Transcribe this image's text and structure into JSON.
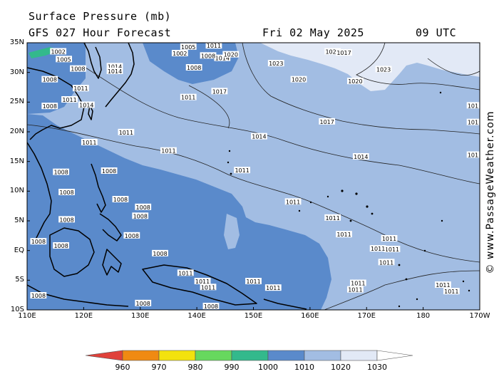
{
  "header": {
    "title": "Surface Pressure (mb)",
    "forecast": "GFS 027 Hour Forecast",
    "date": "Fri 02 May 2025",
    "time": "09 UTC"
  },
  "watermark": "© www.PassageWeather.com",
  "map": {
    "lat_labels": [
      "35N",
      "30N",
      "25N",
      "20N",
      "15N",
      "10N",
      "5N",
      "EQ",
      "5S",
      "10S"
    ],
    "lon_labels": [
      "110E",
      "120E",
      "130E",
      "140E",
      "150E",
      "160E",
      "170E",
      "180",
      "170W"
    ],
    "colors": {
      "ocean_1010": "#5a8acb",
      "ocean_1020": "#a2bde3",
      "high_1030": "#e2e9f6",
      "land_outline": "#000000"
    },
    "isobar_labels": [
      {
        "text": "1023",
        "lon": 154,
        "lat": 31.5
      },
      {
        "text": "1020",
        "lon": 158,
        "lat": 28.8
      },
      {
        "text": "1020",
        "lon": 164,
        "lat": 33.5
      },
      {
        "text": "1017",
        "lon": 166,
        "lat": 33.3
      },
      {
        "text": "1020",
        "lon": 168,
        "lat": 28.5
      },
      {
        "text": "1023",
        "lon": 173,
        "lat": 30.5
      },
      {
        "text": "1017",
        "lon": 144,
        "lat": 26.8
      },
      {
        "text": "1017",
        "lon": 163,
        "lat": 21.7
      },
      {
        "text": "1014",
        "lon": 151,
        "lat": 19.2
      },
      {
        "text": "1014",
        "lon": 169,
        "lat": 15.8
      },
      {
        "text": "1011",
        "lon": 127.5,
        "lat": 19.9
      },
      {
        "text": "1011",
        "lon": 135,
        "lat": 16.8
      },
      {
        "text": "1011",
        "lon": 148,
        "lat": 13.5
      },
      {
        "text": "1011",
        "lon": 157,
        "lat": 8.2
      },
      {
        "text": "1011",
        "lon": 164,
        "lat": 5.5
      },
      {
        "text": "1011",
        "lon": 166,
        "lat": 2.7
      },
      {
        "text": "1011",
        "lon": 138.5,
        "lat": 25.8
      },
      {
        "text": "1014",
        "lon": 125.5,
        "lat": 31.0
      },
      {
        "text": "1014",
        "lon": 125.5,
        "lat": 30.2
      },
      {
        "text": "1014",
        "lon": 144.5,
        "lat": 32.4
      },
      {
        "text": "1011",
        "lon": 143,
        "lat": 34.5
      },
      {
        "text": "1008",
        "lon": 142,
        "lat": 32.8
      },
      {
        "text": "1008",
        "lon": 139.5,
        "lat": 30.8
      },
      {
        "text": "1005",
        "lon": 138.5,
        "lat": 34.3
      },
      {
        "text": "1002",
        "lon": 137,
        "lat": 33.2
      },
      {
        "text": "1020",
        "lon": 146,
        "lat": 33.0
      },
      {
        "text": "1005",
        "lon": 116.5,
        "lat": 32.2
      },
      {
        "text": "1002",
        "lon": 115.5,
        "lat": 33.5
      },
      {
        "text": "1008",
        "lon": 119,
        "lat": 30.6
      },
      {
        "text": "1008",
        "lon": 114,
        "lat": 28.8
      },
      {
        "text": "1011",
        "lon": 119.5,
        "lat": 27.3
      },
      {
        "text": "1008",
        "lon": 114,
        "lat": 24.3
      },
      {
        "text": "1011",
        "lon": 117.5,
        "lat": 25.4
      },
      {
        "text": "1014",
        "lon": 120.5,
        "lat": 24.5
      },
      {
        "text": "1011",
        "lon": 121,
        "lat": 18.2
      },
      {
        "text": "1008",
        "lon": 116,
        "lat": 13.2
      },
      {
        "text": "1008",
        "lon": 124.5,
        "lat": 13.4
      },
      {
        "text": "1008",
        "lon": 117,
        "lat": 9.8
      },
      {
        "text": "1008",
        "lon": 126.5,
        "lat": 8.6
      },
      {
        "text": "1008",
        "lon": 130.5,
        "lat": 7.3
      },
      {
        "text": "1008",
        "lon": 130,
        "lat": 5.8
      },
      {
        "text": "1008",
        "lon": 117,
        "lat": 5.2
      },
      {
        "text": "1008",
        "lon": 112,
        "lat": 1.5
      },
      {
        "text": "1008",
        "lon": 116,
        "lat": 0.8
      },
      {
        "text": "1008",
        "lon": 128.5,
        "lat": 2.5
      },
      {
        "text": "1008",
        "lon": 133.5,
        "lat": -0.5
      },
      {
        "text": "1011",
        "lon": 138,
        "lat": -3.8
      },
      {
        "text": "1011",
        "lon": 141,
        "lat": -5.2
      },
      {
        "text": "1011",
        "lon": 142,
        "lat": -6.2
      },
      {
        "text": "1011",
        "lon": 150,
        "lat": -5.2
      },
      {
        "text": "1011",
        "lon": 153.5,
        "lat": -6.3
      },
      {
        "text": "1008",
        "lon": 142.5,
        "lat": -9.4
      },
      {
        "text": "1008",
        "lon": 130.5,
        "lat": -8.9
      },
      {
        "text": "1008",
        "lon": 112,
        "lat": -7.6
      },
      {
        "text": "1011",
        "lon": 168.5,
        "lat": -5.5
      },
      {
        "text": "1011",
        "lon": 168,
        "lat": -6.6
      },
      {
        "text": "1011",
        "lon": 173.5,
        "lat": -2.0
      },
      {
        "text": "1011",
        "lon": 183.5,
        "lat": -5.8
      },
      {
        "text": "1011",
        "lon": 185,
        "lat": -6.9
      },
      {
        "text": "1011",
        "lon": 174,
        "lat": 2.0
      },
      {
        "text": "1011",
        "lon": 174.5,
        "lat": 0.2
      },
      {
        "text": "1011",
        "lon": 172,
        "lat": 0.3
      },
      {
        "text": "101",
        "lon": 188.8,
        "lat": 24.4
      },
      {
        "text": "101",
        "lon": 188.8,
        "lat": 21.6
      },
      {
        "text": "101",
        "lon": 188.8,
        "lat": 16.1
      }
    ]
  },
  "colorbar": {
    "levels": [
      {
        "label": "960",
        "color": "#e0413a"
      },
      {
        "label": "970",
        "color": "#f08a12"
      },
      {
        "label": "980",
        "color": "#f3e20e"
      },
      {
        "label": "990",
        "color": "#67d85e"
      },
      {
        "label": "1000",
        "color": "#33b98c"
      },
      {
        "label": "1010",
        "color": "#5a8acb"
      },
      {
        "label": "1020",
        "color": "#a2bde3"
      },
      {
        "label": "1030",
        "color": "#e2e9f6"
      }
    ],
    "left_color": "#e0413a",
    "right_color": "#ffffff"
  }
}
